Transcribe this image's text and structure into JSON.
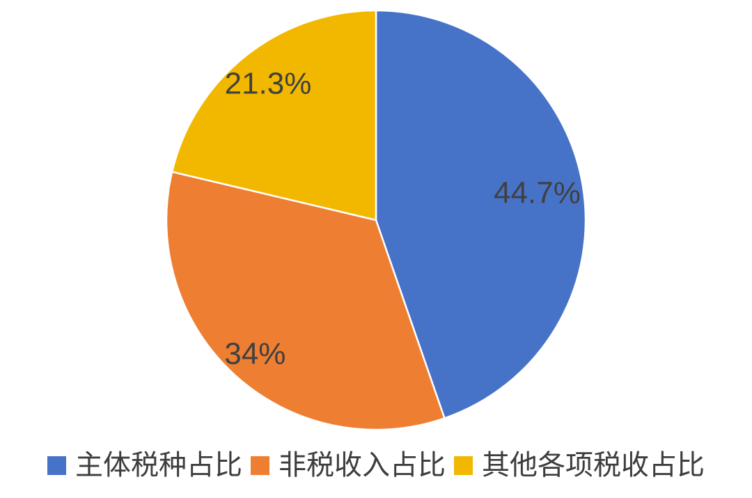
{
  "chart_data": {
    "type": "pie",
    "title": "",
    "categories": [
      "主体税种占比",
      "非税收入占比",
      "其他各项税收占比"
    ],
    "values": [
      44.7,
      34,
      21.3
    ],
    "labels": [
      "44.7%",
      "34%",
      "21.3%"
    ],
    "colors": [
      "#4673C8",
      "#EE7E31",
      "#F2B800"
    ],
    "label_color": "#404040",
    "separator_color": "#ffffff",
    "start_angle_deg": 0,
    "direction": "clockwise",
    "legend_position": "bottom",
    "label_radius_fractions": [
      0.78,
      0.86,
      0.83
    ]
  }
}
